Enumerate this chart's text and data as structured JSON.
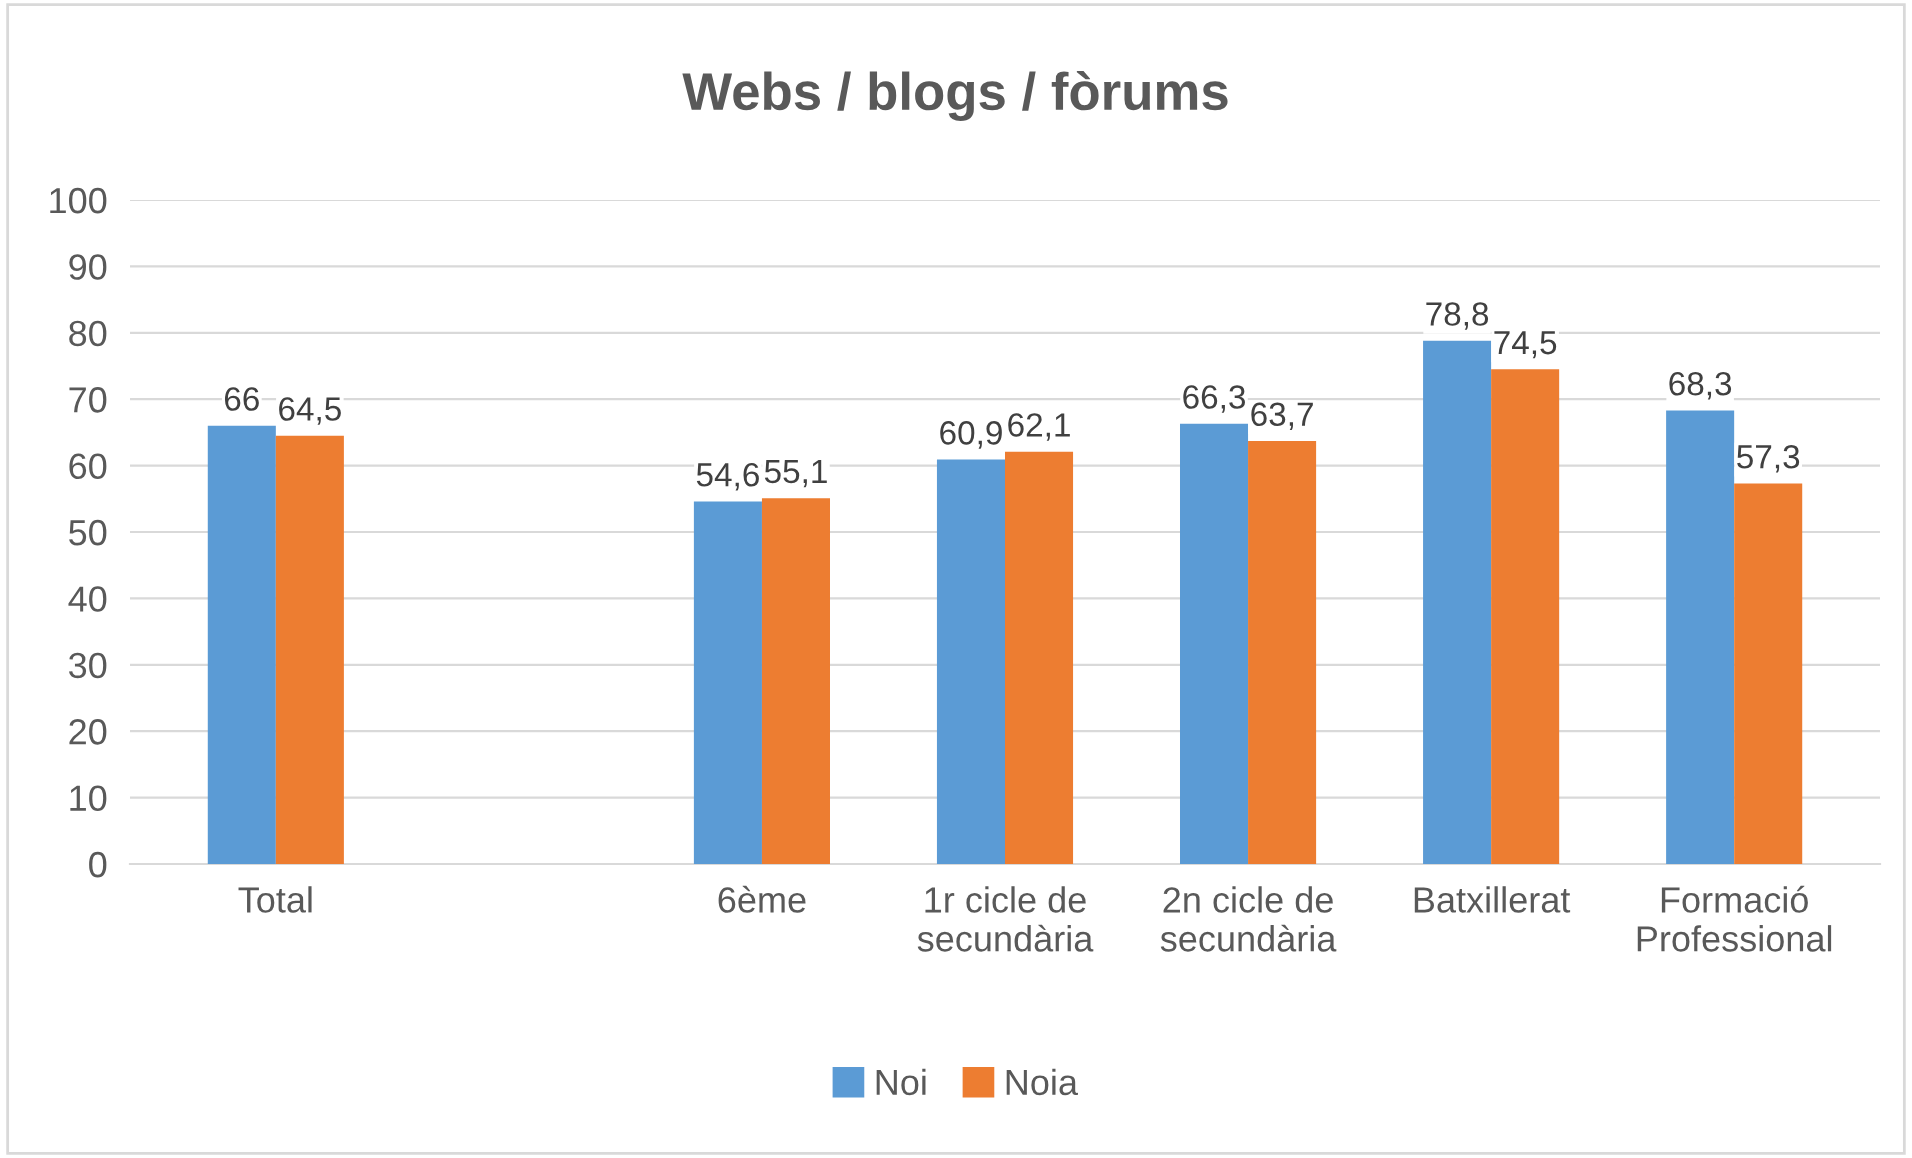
{
  "chart_data": {
    "type": "bar",
    "title": "Webs / blogs / fòrums",
    "categories": [
      "Total",
      null,
      "6ème",
      "1r cicle de secundària",
      "2n cicle de secundària",
      "Batxillerat",
      "Formació Professional"
    ],
    "series": [
      {
        "name": "Noi",
        "color": "#5b9bd5",
        "values": [
          66,
          null,
          54.6,
          60.9,
          66.3,
          78.8,
          68.3
        ],
        "value_labels": [
          "66",
          null,
          "54,6",
          "60,9",
          "66,3",
          "78,8",
          "68,3"
        ]
      },
      {
        "name": "Noia",
        "color": "#ed7d31",
        "values": [
          64.5,
          null,
          55.1,
          62.1,
          63.7,
          74.5,
          57.3
        ],
        "value_labels": [
          "64,5",
          null,
          "55,1",
          "62,1",
          "63,7",
          "74,5",
          "57,3"
        ]
      }
    ],
    "ylim": [
      0,
      100
    ],
    "yticks": [
      0,
      10,
      20,
      30,
      40,
      50,
      60,
      70,
      80,
      90,
      100
    ],
    "grid": "y",
    "legend": "bottom"
  }
}
